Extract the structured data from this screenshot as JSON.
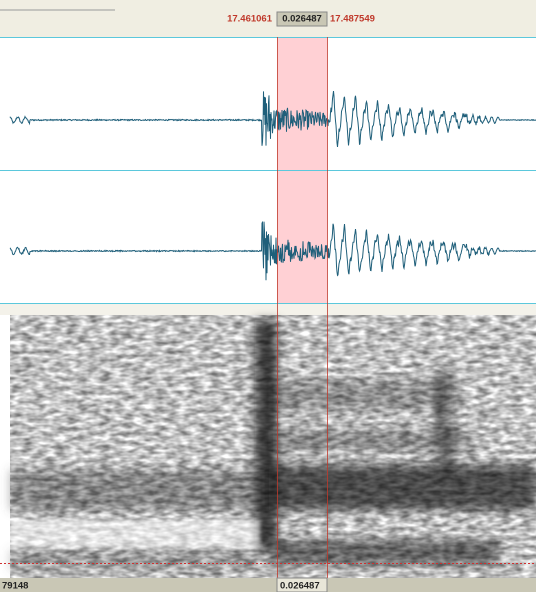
{
  "selection": {
    "start": "17.461061",
    "duration": "0.026487",
    "end": "17.487549"
  },
  "footer": {
    "left": "79148",
    "duration": "0.026487"
  }
}
